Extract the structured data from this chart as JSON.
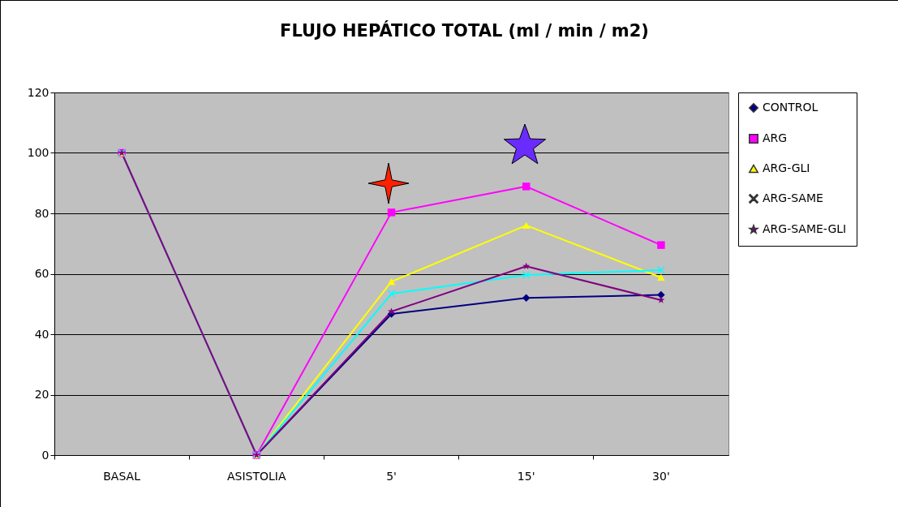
{
  "chart_data": {
    "type": "line",
    "title": "FLUJO HEPÁTICO TOTAL (ml / min / m2)",
    "categories": [
      "BASAL",
      "ASISTOLIA",
      "5'",
      "15'",
      "30'"
    ],
    "series": [
      {
        "name": "CONTROL",
        "color": "#000080",
        "marker": "diamond",
        "values": [
          100,
          0,
          46.7,
          52,
          53
        ]
      },
      {
        "name": "ARG",
        "color": "#ff00ff",
        "marker": "square",
        "values": [
          100,
          0,
          80.3,
          88.9,
          69.5
        ]
      },
      {
        "name": "ARG-GLI",
        "color": "#ffff00",
        "marker": "triangle",
        "values": [
          100,
          0,
          57.4,
          76,
          58.8
        ]
      },
      {
        "name": "ARG-SAME",
        "color": "#00ffff",
        "marker": "cross",
        "values": [
          100,
          0,
          53.4,
          59.6,
          61.2
        ]
      },
      {
        "name": "ARG-SAME-GLI",
        "color": "#800080",
        "marker": "star",
        "values": [
          100,
          0,
          47.5,
          62.5,
          51.3
        ]
      }
    ],
    "ylim": [
      0,
      120
    ],
    "yticks": [
      0,
      20,
      40,
      60,
      80,
      100,
      120
    ],
    "grid": "y",
    "legend": "right"
  }
}
